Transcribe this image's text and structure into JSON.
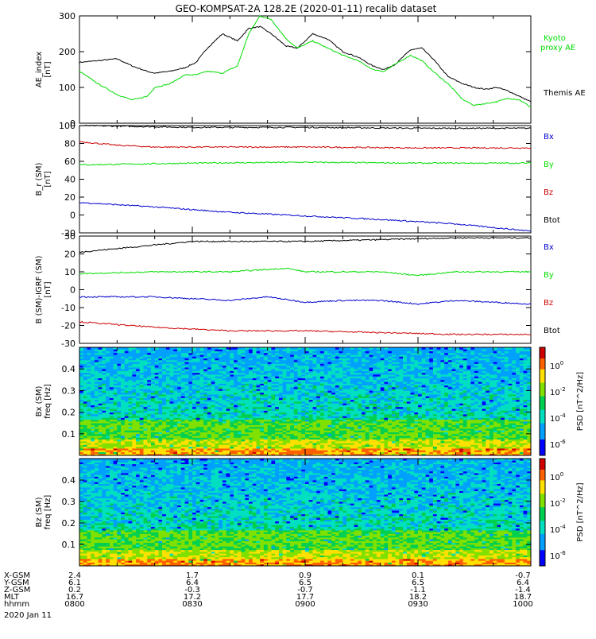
{
  "title": "GEO-KOMPSAT-2A 128.2E (2020-01-11) recalib dataset",
  "colors": {
    "bx": "#000000",
    "by": "#00dd00",
    "bz": "#cc0000",
    "btot": "#0000cc",
    "kyoto": "#00dd00",
    "themis": "#000000"
  },
  "x_ticks": [
    "0800",
    "0830",
    "0900",
    "0930",
    "1000"
  ],
  "chart_data": [
    {
      "type": "line",
      "ylabel_lines": [
        "AE_index",
        "[nT]"
      ],
      "ylim": [
        0,
        300
      ],
      "yticks": [
        "0",
        "100",
        "200",
        "300"
      ],
      "x_range": [
        "0800",
        "1000"
      ],
      "series": [
        {
          "name": "Themis AE",
          "color": "#000000",
          "x_min": [
            0,
            5,
            10,
            14,
            18,
            20,
            24,
            28,
            31,
            34,
            38,
            42,
            45,
            48,
            51,
            55,
            58,
            62,
            66,
            70,
            74,
            78,
            81,
            84,
            88,
            91,
            94,
            98,
            102,
            105,
            108,
            111,
            114,
            117,
            120
          ],
          "values": [
            170,
            175,
            180,
            160,
            145,
            140,
            145,
            155,
            170,
            210,
            250,
            230,
            265,
            270,
            250,
            215,
            210,
            250,
            235,
            200,
            185,
            160,
            150,
            165,
            205,
            210,
            180,
            130,
            110,
            100,
            95,
            100,
            90,
            75,
            60
          ]
        },
        {
          "name": "Kyoto proxy AE",
          "color": "#00dd00",
          "x_min": [
            0,
            5,
            10,
            14,
            18,
            20,
            24,
            28,
            31,
            34,
            38,
            42,
            45,
            48,
            51,
            55,
            58,
            62,
            66,
            70,
            74,
            78,
            81,
            84,
            88,
            91,
            94,
            98,
            102,
            105,
            108,
            111,
            114,
            117,
            120
          ],
          "values": [
            145,
            110,
            80,
            65,
            75,
            100,
            110,
            135,
            135,
            145,
            140,
            160,
            250,
            300,
            290,
            235,
            210,
            230,
            210,
            190,
            175,
            150,
            145,
            165,
            190,
            175,
            145,
            110,
            65,
            50,
            55,
            60,
            70,
            65,
            45
          ]
        }
      ],
      "legend": [
        "Kyoto proxy AE",
        "Themis AE"
      ]
    },
    {
      "type": "line",
      "ylabel_lines": [
        "B_r (SM)",
        "[nT]"
      ],
      "ylim": [
        -20,
        100
      ],
      "yticks": [
        "-20",
        "0",
        "20",
        "40",
        "60",
        "80",
        "100"
      ],
      "series": [
        {
          "name": "Bx",
          "color": "#000000",
          "x_min": [
            0,
            30,
            60,
            90,
            120
          ],
          "values": [
            100,
            98,
            98,
            97,
            97
          ]
        },
        {
          "name": "Bz",
          "color": "#cc0000",
          "x_min": [
            0,
            10,
            20,
            60,
            90,
            120
          ],
          "values": [
            82,
            78,
            76,
            76,
            75,
            75
          ]
        },
        {
          "name": "By",
          "color": "#00dd00",
          "x_min": [
            0,
            30,
            60,
            90,
            120
          ],
          "values": [
            56,
            58,
            59,
            58,
            58
          ]
        },
        {
          "name": "Btot",
          "color": "#0000cc",
          "x_min": [
            0,
            20,
            40,
            60,
            80,
            100,
            120
          ],
          "values": [
            14,
            9,
            3,
            -1,
            -5,
            -10,
            -18
          ]
        }
      ],
      "legend": [
        "Bx",
        "By",
        "Bz",
        "Btot"
      ]
    },
    {
      "type": "line",
      "ylabel_lines": [
        "B (SM)-IGRF (SM)",
        "[nT]"
      ],
      "ylim": [
        -30,
        30
      ],
      "yticks": [
        "-30",
        "-20",
        "-10",
        "0",
        "10",
        "20",
        "30"
      ],
      "series": [
        {
          "name": "Bx",
          "color": "#000000",
          "x_min": [
            0,
            10,
            20,
            30,
            40,
            60,
            80,
            100,
            120
          ],
          "values": [
            21,
            23,
            25,
            27,
            27,
            27,
            28,
            29,
            29
          ]
        },
        {
          "name": "By",
          "color": "#00dd00",
          "x_min": [
            0,
            20,
            40,
            55,
            60,
            80,
            90,
            100,
            120
          ],
          "values": [
            9,
            10,
            10,
            12,
            10,
            10,
            8,
            10,
            10
          ]
        },
        {
          "name": "Bz",
          "color": "#0000cc",
          "x_min": [
            0,
            20,
            40,
            50,
            60,
            70,
            80,
            90,
            100,
            110,
            120
          ],
          "values": [
            -4,
            -4,
            -6,
            -4,
            -7,
            -6,
            -6,
            -8,
            -6,
            -7,
            -8
          ]
        },
        {
          "name": "Btot",
          "color": "#cc0000",
          "x_min": [
            0,
            20,
            40,
            60,
            80,
            100,
            120
          ],
          "values": [
            -18,
            -21,
            -23,
            -23,
            -24,
            -25,
            -25
          ]
        }
      ],
      "legend": [
        "Bx",
        "By",
        "Bz",
        "Btot"
      ]
    },
    {
      "type": "heatmap",
      "ylabel_lines": [
        "Bx (SM)",
        "freq [Hz]"
      ],
      "ylim": [
        0,
        0.5
      ],
      "yticks": [
        "0.1",
        "0.2",
        "0.3",
        "0.4"
      ],
      "colorbar_label": "PSD [nT^2/Hz]",
      "colorbar_ticks": [
        "10^0",
        "10^-2",
        "10^-4",
        "10^-6"
      ]
    },
    {
      "type": "heatmap",
      "ylabel_lines": [
        "Bz (SM)",
        "freq [Hz]"
      ],
      "ylim": [
        0,
        0.5
      ],
      "yticks": [
        "0.1",
        "0.2",
        "0.3",
        "0.4"
      ],
      "colorbar_label": "PSD [nT^2/Hz]",
      "colorbar_ticks": [
        "10^0",
        "10^-2",
        "10^-4",
        "10^-6"
      ]
    }
  ],
  "ephemeris": {
    "labels": [
      "X-GSM",
      "Y-GSM",
      "Z-GSM",
      "MLT",
      "hhmm"
    ],
    "rows": [
      [
        "2.4",
        "1.7",
        "0.9",
        "0.1",
        "-0.7"
      ],
      [
        "6.1",
        "6.4",
        "6.5",
        "6.5",
        "6.4"
      ],
      [
        "0.2",
        "-0.3",
        "-0.7",
        "-1.1",
        "-1.4"
      ],
      [
        "16.7",
        "17.2",
        "17.7",
        "18.2",
        "18.7"
      ],
      [
        "0800",
        "0830",
        "0900",
        "0930",
        "1000"
      ]
    ],
    "date": "2020 Jan 11"
  }
}
